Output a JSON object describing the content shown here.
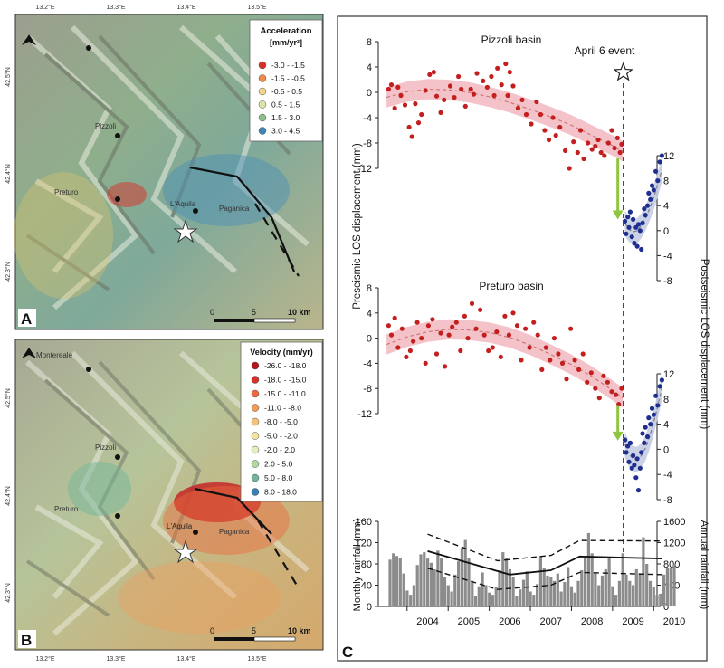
{
  "colors": {
    "pre_dot": "#c41f1f",
    "pre_band": "#f2b9bf",
    "post_dot": "#1f2f8f",
    "post_band": "#c5cde3",
    "arrow": "#8ec63f",
    "bar": "#8c8c8c",
    "panel_border": "#333333"
  },
  "map_ticks": {
    "lon": [
      "13.2°E",
      "13.3°E",
      "13.4°E",
      "13.5°E"
    ],
    "lat_a": [
      "42.5°N",
      "42.4°N",
      "42.3°N"
    ],
    "lat_b": [
      "42.5°N",
      "42.4°N",
      "42.3°N"
    ]
  },
  "panel_a": {
    "letter": "A",
    "legend_title": "Acceleration",
    "legend_unit": "[mm/yr²]",
    "legend_items": [
      {
        "label": "-3.0 - -1.5",
        "color": "#d7302a"
      },
      {
        "label": "-1.5 - -0.5",
        "color": "#ef8a4d"
      },
      {
        "label": "-0.5 - 0.5",
        "color": "#f3d58a"
      },
      {
        "label": "0.5 - 1.5",
        "color": "#d9e6a6"
      },
      {
        "label": "1.5 - 3.0",
        "color": "#8cc08a"
      },
      {
        "label": "3.0 - 4.5",
        "color": "#3f86b8"
      }
    ],
    "place_labels": [
      "Pizzoli",
      "Preturo",
      "L'Aquila",
      "Paganica"
    ],
    "scale_labels": [
      "0",
      "5",
      "10 km"
    ]
  },
  "panel_b": {
    "letter": "B",
    "legend_title": "Velocity (mm/yr)",
    "legend_items": [
      {
        "label": "-26.0 - -18.0",
        "color": "#b0171b"
      },
      {
        "label": "-18.0 - -15.0",
        "color": "#d7302a"
      },
      {
        "label": "-15.0 - -11.0",
        "color": "#ec6a3e"
      },
      {
        "label": "-11.0 - -8.0",
        "color": "#f39a58"
      },
      {
        "label": "-8.0 - -5.0",
        "color": "#f6c27b"
      },
      {
        "label": "-5.0 - -2.0",
        "color": "#f6e3a0"
      },
      {
        "label": "-2.0 - 2.0",
        "color": "#e4edc0"
      },
      {
        "label": "2.0 - 5.0",
        "color": "#b3d7a0"
      },
      {
        "label": "5.0 - 8.0",
        "color": "#74b59a"
      },
      {
        "label": "8.0 - 18.0",
        "color": "#3a7fb4"
      }
    ],
    "place_labels": [
      "Montereale",
      "Pizzoli",
      "Preturo",
      "L'Aquila",
      "Paganica"
    ],
    "scale_labels": [
      "0",
      "5",
      "10 km"
    ]
  },
  "panel_c": {
    "letter": "C",
    "event_label": "April 6 event",
    "left_axis_label": "Preseismic LOS displacement (mm)",
    "right_axis_label": "Postseismic LOS displacement (mm)",
    "rain_left_label": "Monthly rainfall (mm)",
    "rain_right_label": "Annual rainfall (mm)"
  },
  "chart_data": [
    {
      "type": "scatter",
      "title": "Pizzoli basin",
      "ylabel": "Preseismic LOS displacement (mm)",
      "xlim": [
        2003.3,
        2010.5
      ],
      "ylim": [
        -12,
        8
      ],
      "yticks": [
        "8",
        "4",
        "0",
        "-4",
        "-8",
        "-12"
      ],
      "y2label": "Postseismic LOS displacement (mm)",
      "y2lim": [
        -8,
        12
      ],
      "y2ticks": [
        "12",
        "8",
        "4",
        "0",
        "-4",
        "-8"
      ],
      "event_x": 2009.26,
      "pre_fit": {
        "x": [
          2003.5,
          2004.0,
          2004.5,
          2005.0,
          2005.5,
          2006.0,
          2006.5,
          2007.0,
          2007.5,
          2008.0,
          2008.5,
          2009.0,
          2009.25
        ],
        "y": [
          -0.8,
          0.1,
          0.5,
          0.4,
          0.0,
          -0.7,
          -1.6,
          -2.7,
          -3.9,
          -5.2,
          -6.8,
          -8.4,
          -9.3
        ]
      },
      "pre_series": {
        "name": "Preseismic",
        "x": [
          2003.55,
          2003.62,
          2003.7,
          2003.78,
          2003.85,
          2003.95,
          2004.05,
          2004.12,
          2004.2,
          2004.28,
          2004.35,
          2004.45,
          2004.55,
          2004.65,
          2004.72,
          2004.82,
          2004.9,
          2005.05,
          2005.15,
          2005.25,
          2005.32,
          2005.42,
          2005.55,
          2005.62,
          2005.7,
          2005.85,
          2005.95,
          2006.05,
          2006.12,
          2006.2,
          2006.3,
          2006.4,
          2006.45,
          2006.5,
          2006.58,
          2006.7,
          2006.8,
          2006.9,
          2007.02,
          2007.15,
          2007.25,
          2007.35,
          2007.45,
          2007.55,
          2007.62,
          2007.72,
          2007.85,
          2007.95,
          2008.05,
          2008.15,
          2008.22,
          2008.3,
          2008.4,
          2008.5,
          2008.58,
          2008.65,
          2008.72,
          2008.8,
          2008.9,
          2008.98,
          2009.05,
          2009.12,
          2009.18,
          2009.22
        ],
        "y": [
          0.5,
          1.2,
          -2.5,
          0.8,
          -0.5,
          -2.0,
          -5.5,
          -7.0,
          -1.8,
          -4.8,
          -3.5,
          0.3,
          2.8,
          3.2,
          -0.6,
          -3.2,
          -1.2,
          1.0,
          -0.8,
          2.5,
          0.5,
          -2.2,
          0.5,
          -0.3,
          3.0,
          1.8,
          0.8,
          2.5,
          -0.5,
          3.8,
          1.2,
          4.5,
          -0.5,
          3.2,
          1.0,
          -2.5,
          -1.2,
          -3.5,
          -5.0,
          -1.5,
          -3.5,
          -6.0,
          -7.5,
          -4.0,
          -6.8,
          -5.5,
          -9.2,
          -12.0,
          -7.8,
          -9.5,
          -6.0,
          -10.5,
          -8.0,
          -9.0,
          -8.5,
          -7.5,
          -9.5,
          -10.0,
          -8.0,
          -6.0,
          -8.8,
          -7.2,
          -9.5,
          -8.2
        ]
      },
      "post_fit": {
        "x": [
          2009.3,
          2009.4,
          2009.5,
          2009.6,
          2009.7,
          2009.8,
          2009.9,
          2010.0,
          2010.1,
          2010.2
        ],
        "y": [
          1.2,
          0.2,
          -0.2,
          0.0,
          0.8,
          2.0,
          3.5,
          5.3,
          7.4,
          9.8
        ]
      },
      "post_series": {
        "name": "Postseismic",
        "x": [
          2009.3,
          2009.33,
          2009.37,
          2009.4,
          2009.43,
          2009.47,
          2009.5,
          2009.53,
          2009.57,
          2009.6,
          2009.63,
          2009.67,
          2009.7,
          2009.73,
          2009.77,
          2009.8,
          2009.85,
          2009.88,
          2009.92,
          2009.96,
          2010.0,
          2010.05,
          2010.1,
          2010.15,
          2010.2
        ],
        "y": [
          1.5,
          -0.5,
          2.2,
          0.5,
          3.0,
          -1.0,
          1.8,
          -2.0,
          0.5,
          -2.5,
          1.0,
          0.0,
          -3.0,
          1.2,
          3.5,
          2.5,
          4.0,
          6.0,
          5.0,
          7.2,
          6.5,
          9.5,
          8.0,
          11.0,
          12.0
        ]
      }
    },
    {
      "type": "scatter",
      "title": "Preturo basin",
      "ylabel": "Preseismic LOS displacement (mm)",
      "xlim": [
        2003.3,
        2010.5
      ],
      "ylim": [
        -12,
        8
      ],
      "yticks": [
        "8",
        "4",
        "0",
        "-4",
        "-8",
        "-12"
      ],
      "y2label": "Postseismic LOS displacement (mm)",
      "y2lim": [
        -8,
        12
      ],
      "y2ticks": [
        "12",
        "8",
        "4",
        "0",
        "-4",
        "-8"
      ],
      "event_x": 2009.26,
      "pre_fit": {
        "x": [
          2003.5,
          2004.0,
          2004.5,
          2005.0,
          2005.5,
          2006.0,
          2006.5,
          2007.0,
          2007.5,
          2008.0,
          2008.5,
          2009.0,
          2009.25
        ],
        "y": [
          -1.0,
          0.2,
          1.0,
          1.4,
          1.3,
          0.9,
          0.1,
          -1.1,
          -2.6,
          -4.2,
          -6.1,
          -8.3,
          -9.5
        ]
      },
      "pre_series": {
        "name": "Preseismic",
        "x": [
          2003.55,
          2003.62,
          2003.7,
          2003.78,
          2003.88,
          2003.98,
          2004.08,
          2004.15,
          2004.25,
          2004.35,
          2004.45,
          2004.52,
          2004.62,
          2004.72,
          2004.82,
          2004.92,
          2005.02,
          2005.1,
          2005.2,
          2005.3,
          2005.4,
          2005.48,
          2005.58,
          2005.68,
          2005.78,
          2005.88,
          2005.98,
          2006.08,
          2006.18,
          2006.28,
          2006.38,
          2006.48,
          2006.58,
          2006.68,
          2006.78,
          2006.88,
          2006.98,
          2007.08,
          2007.18,
          2007.28,
          2007.38,
          2007.48,
          2007.58,
          2007.68,
          2007.78,
          2007.88,
          2007.98,
          2008.08,
          2008.18,
          2008.28,
          2008.38,
          2008.48,
          2008.58,
          2008.68,
          2008.78,
          2008.88,
          2008.98,
          2009.08,
          2009.15,
          2009.22
        ],
        "y": [
          2.0,
          0.5,
          3.2,
          -1.5,
          1.5,
          -3.0,
          -2.0,
          -0.5,
          2.5,
          0.0,
          -4.0,
          2.0,
          3.0,
          -2.5,
          0.8,
          -4.5,
          0.5,
          1.8,
          2.5,
          -2.0,
          3.5,
          0.0,
          5.5,
          1.5,
          4.5,
          0.5,
          -2.0,
          -1.5,
          1.0,
          -3.0,
          3.5,
          0.5,
          4.0,
          2.0,
          -3.5,
          1.5,
          -1.5,
          2.5,
          0.5,
          -5.0,
          -1.5,
          -3.5,
          0.0,
          -2.5,
          -4.0,
          -6.5,
          1.5,
          -3.5,
          -5.0,
          -2.5,
          -7.0,
          -5.5,
          -8.0,
          -9.5,
          -6.0,
          -7.0,
          -8.5,
          -9.0,
          -10.5,
          -8.0
        ]
      },
      "post_fit": {
        "x": [
          2009.3,
          2009.4,
          2009.5,
          2009.6,
          2009.7,
          2009.8,
          2009.9,
          2010.0,
          2010.1,
          2010.2
        ],
        "y": [
          0.8,
          -0.8,
          -1.5,
          -1.6,
          -1.0,
          0.2,
          2.0,
          4.3,
          6.9,
          9.8
        ]
      },
      "post_series": {
        "name": "Postseismic",
        "x": [
          2009.3,
          2009.33,
          2009.37,
          2009.4,
          2009.43,
          2009.47,
          2009.5,
          2009.53,
          2009.57,
          2009.6,
          2009.63,
          2009.67,
          2009.7,
          2009.73,
          2009.77,
          2009.8,
          2009.85,
          2009.88,
          2009.92,
          2009.96,
          2010.0,
          2010.05,
          2010.1,
          2010.15,
          2010.2
        ],
        "y": [
          1.5,
          -0.5,
          0.5,
          -2.0,
          1.0,
          -3.0,
          -1.0,
          -2.5,
          -4.5,
          -1.5,
          -6.5,
          -3.0,
          -0.5,
          2.5,
          1.0,
          3.5,
          2.0,
          5.0,
          4.0,
          6.5,
          5.5,
          8.5,
          7.0,
          10.0,
          11.0
        ]
      }
    },
    {
      "type": "bar",
      "title": "",
      "xlabel": "",
      "ylabel": "Monthly rainfall (mm)",
      "y2label": "Annual rainfall (mm)",
      "xlim": [
        2003.3,
        2010.5
      ],
      "ylim": [
        0,
        160
      ],
      "yticks": [
        "160",
        "120",
        "80",
        "40",
        "0"
      ],
      "y2lim": [
        0,
        1600
      ],
      "y2ticks": [
        "1600",
        "1200",
        "800",
        "400",
        "0"
      ],
      "xticks": [
        "2004",
        "2005",
        "2006",
        "2007",
        "2008",
        "2009",
        "2010"
      ],
      "event_x": 2009.26,
      "bars_start": 2003.55,
      "bar_width_years": 0.0833,
      "monthly_values": [
        88,
        100,
        95,
        92,
        62,
        30,
        22,
        40,
        78,
        98,
        102,
        90,
        82,
        70,
        105,
        92,
        55,
        40,
        28,
        60,
        85,
        110,
        125,
        92,
        48,
        20,
        38,
        64,
        40,
        26,
        22,
        36,
        68,
        102,
        92,
        70,
        55,
        20,
        32,
        50,
        66,
        28,
        22,
        42,
        95,
        72,
        58,
        55,
        48,
        62,
        28,
        46,
        74,
        38,
        26,
        48,
        68,
        92,
        138,
        100,
        62,
        40,
        58,
        70,
        92,
        38,
        22,
        48,
        100,
        60,
        48,
        40,
        70,
        62,
        130,
        80,
        48,
        36,
        22,
        24,
        60,
        72,
        72,
        80
      ],
      "annual_series": [
        {
          "name": "Annual rainfall",
          "style": "solid",
          "x": [
            2004.5,
            2006.5,
            2007.5,
            2008.2,
            2010.2
          ],
          "y": [
            1040,
            600,
            680,
            940,
            900
          ]
        },
        {
          "name": "Upper bound",
          "style": "dashed",
          "x": [
            2004.5,
            2006.2,
            2007.5,
            2008.2,
            2010.2
          ],
          "y": [
            1360,
            860,
            960,
            1240,
            1230
          ]
        },
        {
          "name": "Lower bound",
          "style": "dashed",
          "x": [
            2004.5,
            2006.2,
            2007.5,
            2008.2,
            2010.2
          ],
          "y": [
            720,
            320,
            400,
            640,
            600
          ]
        }
      ]
    }
  ]
}
